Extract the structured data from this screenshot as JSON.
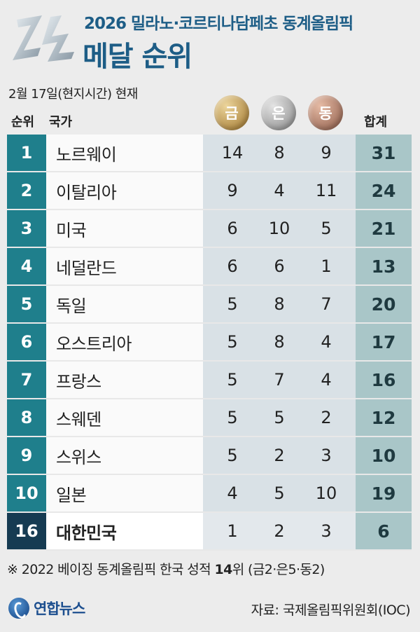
{
  "header": {
    "subtitle": "2026 밀라노·코르티나담페초 동계올림픽",
    "title": "메달 순위",
    "logo_icon": "milano-cortina-2026-logo-icon"
  },
  "date_line": "2월 17일(현지시간) 현재",
  "columns": {
    "rank": "순위",
    "country": "국가",
    "gold": "금",
    "silver": "은",
    "bronze": "동",
    "total": "합계"
  },
  "colors": {
    "title": "#1d5d86",
    "rank_bg": "#1f7f8c",
    "korea_rank_bg": "#163b52",
    "medal_bg": "#d9e1e6",
    "total_bg": "#a9c6c8"
  },
  "chart_data": {
    "type": "table",
    "title": "메달 순위",
    "columns": [
      "순위",
      "국가",
      "금",
      "은",
      "동",
      "합계"
    ],
    "rows": [
      {
        "rank": "1",
        "country": "노르웨이",
        "gold": 14,
        "silver": 8,
        "bronze": 9,
        "total": 31
      },
      {
        "rank": "2",
        "country": "이탈리아",
        "gold": 9,
        "silver": 4,
        "bronze": 11,
        "total": 24
      },
      {
        "rank": "3",
        "country": "미국",
        "gold": 6,
        "silver": 10,
        "bronze": 5,
        "total": 21
      },
      {
        "rank": "4",
        "country": "네덜란드",
        "gold": 6,
        "silver": 6,
        "bronze": 1,
        "total": 13
      },
      {
        "rank": "5",
        "country": "독일",
        "gold": 5,
        "silver": 8,
        "bronze": 7,
        "total": 20
      },
      {
        "rank": "6",
        "country": "오스트리아",
        "gold": 5,
        "silver": 8,
        "bronze": 4,
        "total": 17
      },
      {
        "rank": "7",
        "country": "프랑스",
        "gold": 5,
        "silver": 7,
        "bronze": 4,
        "total": 16
      },
      {
        "rank": "8",
        "country": "스웨덴",
        "gold": 5,
        "silver": 5,
        "bronze": 2,
        "total": 12
      },
      {
        "rank": "9",
        "country": "스위스",
        "gold": 5,
        "silver": 2,
        "bronze": 3,
        "total": 10
      },
      {
        "rank": "10",
        "country": "일본",
        "gold": 4,
        "silver": 5,
        "bronze": 10,
        "total": 19
      },
      {
        "rank": "16",
        "country": "대한민국",
        "gold": 1,
        "silver": 2,
        "bronze": 3,
        "total": 6,
        "highlight": true
      }
    ]
  },
  "note": {
    "prefix": "※ 2022 베이징 동계올림픽 한국 성적 ",
    "rank": "14",
    "suffix": "위 (금2·은5·동2)"
  },
  "footer": {
    "logo_name": "연합뉴스",
    "logo_icon": "yonhap-logo-icon",
    "source": "자료: 국제올림픽위원회(IOC)"
  }
}
